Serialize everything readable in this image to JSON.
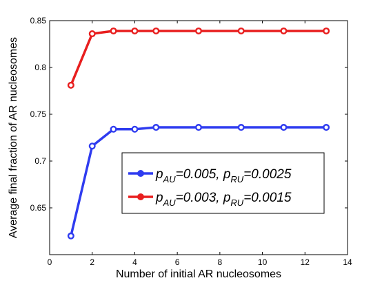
{
  "chart_data": {
    "type": "line",
    "title": "",
    "xlabel": "Number of initial AR nucleosomes",
    "ylabel": "Average final fraction of AR nucleosomes",
    "xlim": [
      0,
      14
    ],
    "ylim": [
      0.6,
      0.85
    ],
    "x": [
      1,
      2,
      3,
      4,
      5,
      7,
      9,
      11,
      13
    ],
    "x_ticks": [
      0,
      2,
      4,
      6,
      8,
      10,
      12,
      14
    ],
    "x_tick_labels": [
      "0",
      "2",
      "4",
      "6",
      "8",
      "10",
      "12",
      "14"
    ],
    "y_ticks": [
      0.65,
      0.7,
      0.75,
      0.8,
      0.85
    ],
    "y_tick_labels": [
      "0.65",
      "0.7",
      "0.75",
      "0.8",
      "0.85"
    ],
    "grid": false,
    "legend_position": "lower-right",
    "series": [
      {
        "name": "p_AU=0.005, p_RU=0.0025",
        "legend": {
          "p1": "p",
          "sub1": "AU",
          "eq1": "=0.005, ",
          "p2": "p",
          "sub2": "RU",
          "eq2": "=0.0025"
        },
        "color": "#2f3cf0",
        "values": [
          0.62,
          0.716,
          0.734,
          0.734,
          0.736,
          0.736,
          0.736,
          0.736,
          0.736
        ]
      },
      {
        "name": "p_AU=0.003, p_RU=0.0015",
        "legend": {
          "p1": "p",
          "sub1": "AU",
          "eq1": "=0.003, ",
          "p2": "p",
          "sub2": "RU",
          "eq2": "=0.0015"
        },
        "color": "#e81e1e",
        "values": [
          0.781,
          0.836,
          0.839,
          0.839,
          0.839,
          0.839,
          0.839,
          0.839,
          0.839
        ]
      }
    ]
  }
}
